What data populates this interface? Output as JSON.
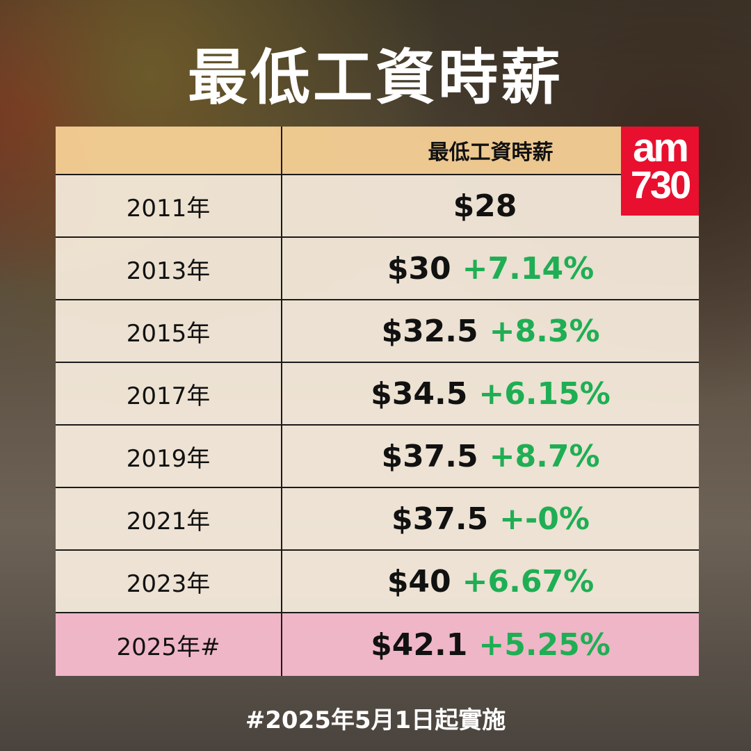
{
  "title": "最低工資時薪",
  "logo": {
    "line1": "am",
    "line2": "730",
    "color": "#e8102e"
  },
  "table": {
    "header": {
      "year": "",
      "wage": "最低工資時薪"
    },
    "rows": [
      {
        "year": "2011年",
        "wage": "$28",
        "change": ""
      },
      {
        "year": "2013年",
        "wage": "$30",
        "change": "+7.14%"
      },
      {
        "year": "2015年",
        "wage": "$32.5",
        "change": "+8.3%"
      },
      {
        "year": "2017年",
        "wage": "$34.5",
        "change": "+6.15%"
      },
      {
        "year": "2019年",
        "wage": "$37.5",
        "change": "+8.7%"
      },
      {
        "year": "2021年",
        "wage": "$37.5",
        "change": "+-0%"
      },
      {
        "year": "2023年",
        "wage": "$40",
        "change": "+6.67%"
      },
      {
        "year": "2025年#",
        "wage": "$42.1",
        "change": "+5.25%"
      }
    ]
  },
  "colors": {
    "header": "#f6d096",
    "row": "#f8eede",
    "highlight": "#f6bacc",
    "change": "#1fae54"
  },
  "footnote": "#2025年5月1日起實施"
}
